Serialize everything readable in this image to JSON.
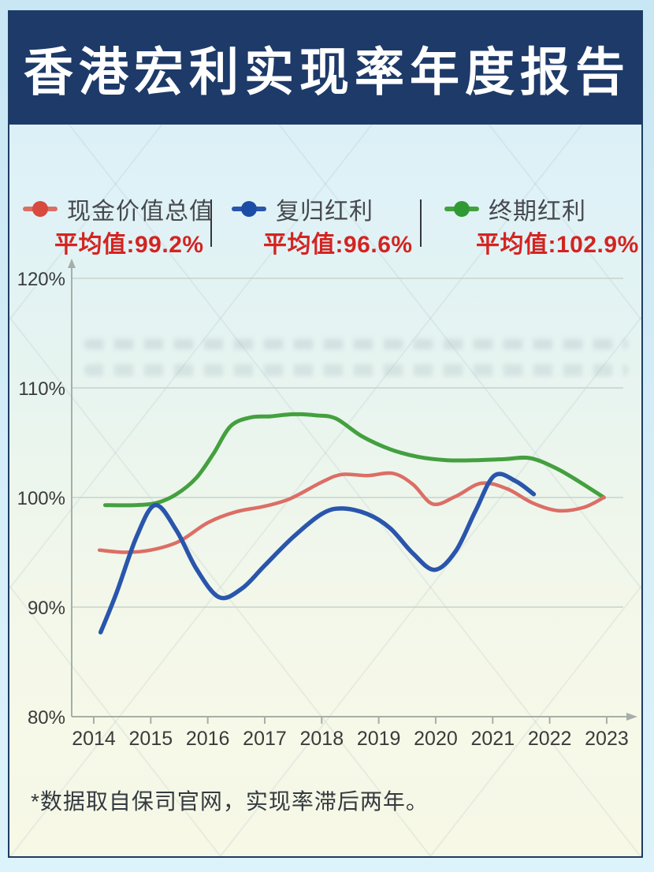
{
  "page": {
    "background_color": "#d3ecf7",
    "panel_border_color": "#1e3c64"
  },
  "header": {
    "title": "香港宏利实现率年度报告",
    "background_color": "#1d3a69",
    "text_color": "#ffffff"
  },
  "legend": {
    "average_color": "#d32421",
    "items": [
      {
        "label": "现金价值总值",
        "average_text": "平均值:99.2%",
        "average_value": "99.2%",
        "color": "#dc6e65",
        "marker_color": "#d8493f"
      },
      {
        "label": "复归红利",
        "average_text": "平均值:96.6%",
        "average_value": "96.6%",
        "color": "#2a55ac",
        "marker_color": "#1c4da6"
      },
      {
        "label": "终期红利",
        "average_text": "平均值:102.9%",
        "average_value": "102.9%",
        "color": "#44a03f",
        "marker_color": "#2f9a33"
      }
    ]
  },
  "chart_data": {
    "type": "line",
    "title": "",
    "xlabel": "",
    "ylabel": "",
    "x_ticks": [
      "2014",
      "2015",
      "2016",
      "2017",
      "2018",
      "2019",
      "2020",
      "2021",
      "2022",
      "2023"
    ],
    "y_ticks": [
      "120%",
      "110%",
      "100%",
      "90%",
      "80%"
    ],
    "y_tick_values": [
      120,
      110,
      100,
      90,
      80
    ],
    "ylim": [
      80,
      121
    ],
    "xlim": [
      2013.8,
      2023.5
    ],
    "grid": true,
    "legend_position": "top",
    "series": [
      {
        "name": "现金价值总值",
        "color": "#dc6e65",
        "average": 99.2,
        "points": [
          [
            2014.1,
            95.2
          ],
          [
            2014.55,
            95.0
          ],
          [
            2015.0,
            95.2
          ],
          [
            2015.5,
            96.0
          ],
          [
            2016.0,
            97.7
          ],
          [
            2016.5,
            98.7
          ],
          [
            2017.0,
            99.2
          ],
          [
            2017.45,
            99.9
          ],
          [
            2018.0,
            101.4
          ],
          [
            2018.35,
            102.1
          ],
          [
            2018.8,
            102.0
          ],
          [
            2019.25,
            102.2
          ],
          [
            2019.6,
            101.2
          ],
          [
            2019.95,
            99.4
          ],
          [
            2020.35,
            100.1
          ],
          [
            2020.8,
            101.3
          ],
          [
            2021.25,
            100.8
          ],
          [
            2021.7,
            99.5
          ],
          [
            2022.15,
            98.8
          ],
          [
            2022.6,
            99.1
          ],
          [
            2022.95,
            100.0
          ]
        ]
      },
      {
        "name": "复归红利",
        "color": "#2a55ac",
        "average": 96.6,
        "points": [
          [
            2014.12,
            87.7
          ],
          [
            2014.4,
            91.3
          ],
          [
            2014.75,
            96.4
          ],
          [
            2015.08,
            99.3
          ],
          [
            2015.45,
            97.0
          ],
          [
            2015.8,
            93.5
          ],
          [
            2016.2,
            90.9
          ],
          [
            2016.6,
            91.7
          ],
          [
            2017.0,
            93.8
          ],
          [
            2017.5,
            96.4
          ],
          [
            2018.0,
            98.5
          ],
          [
            2018.35,
            99.0
          ],
          [
            2018.8,
            98.5
          ],
          [
            2019.2,
            97.2
          ],
          [
            2019.6,
            94.9
          ],
          [
            2019.98,
            93.4
          ],
          [
            2020.35,
            95.1
          ],
          [
            2020.7,
            98.8
          ],
          [
            2021.03,
            102.0
          ],
          [
            2021.4,
            101.5
          ],
          [
            2021.72,
            100.3
          ]
        ]
      },
      {
        "name": "终期红利",
        "color": "#44a03f",
        "average": 102.9,
        "points": [
          [
            2014.2,
            99.3
          ],
          [
            2014.7,
            99.3
          ],
          [
            2015.1,
            99.5
          ],
          [
            2015.45,
            100.3
          ],
          [
            2015.8,
            101.8
          ],
          [
            2016.1,
            104.0
          ],
          [
            2016.4,
            106.5
          ],
          [
            2016.75,
            107.3
          ],
          [
            2017.1,
            107.4
          ],
          [
            2017.5,
            107.6
          ],
          [
            2017.9,
            107.5
          ],
          [
            2018.25,
            107.2
          ],
          [
            2018.7,
            105.6
          ],
          [
            2019.2,
            104.4
          ],
          [
            2019.7,
            103.7
          ],
          [
            2020.2,
            103.4
          ],
          [
            2020.7,
            103.4
          ],
          [
            2021.2,
            103.5
          ],
          [
            2021.65,
            103.6
          ],
          [
            2022.1,
            102.7
          ],
          [
            2022.5,
            101.5
          ],
          [
            2022.95,
            100.0
          ]
        ]
      }
    ]
  },
  "footnote": {
    "text": "*数据取自保司官网，实现率滞后两年。"
  }
}
